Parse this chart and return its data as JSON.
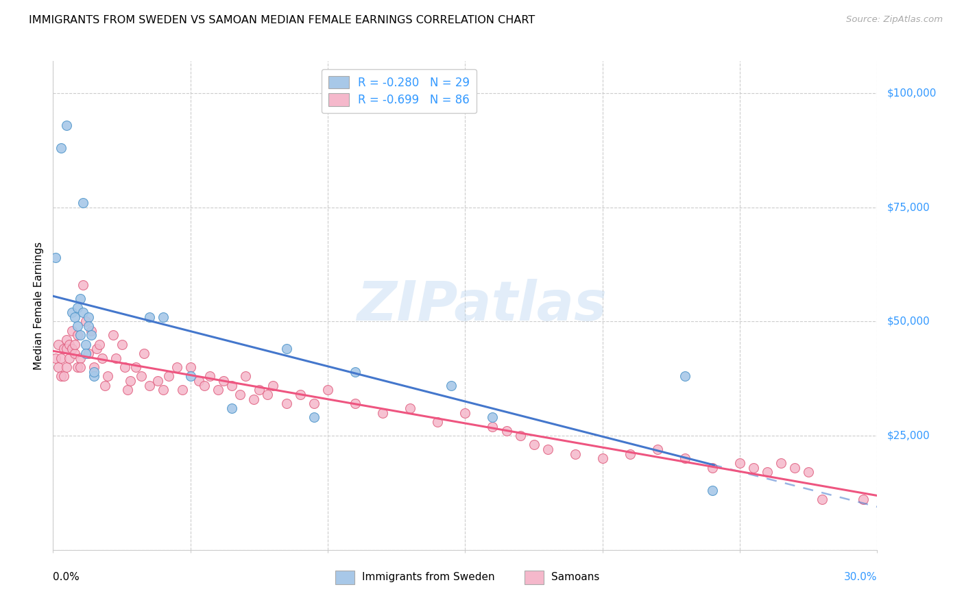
{
  "title": "IMMIGRANTS FROM SWEDEN VS SAMOAN MEDIAN FEMALE EARNINGS CORRELATION CHART",
  "source": "Source: ZipAtlas.com",
  "ylabel": "Median Female Earnings",
  "xlim": [
    0,
    0.3
  ],
  "ylim": [
    0,
    107000
  ],
  "color_blue_fill": "#a8c8e8",
  "color_pink_fill": "#f5b8cb",
  "color_blue_edge": "#5599cc",
  "color_pink_edge": "#e06080",
  "color_blue_line": "#4477cc",
  "color_pink_line": "#ee5580",
  "legend_label1": "Immigrants from Sweden",
  "legend_label2": "Samoans",
  "watermark_text": "ZIPatlas",
  "R1": "-0.280",
  "N1": "29",
  "R2": "-0.699",
  "N2": "86",
  "blue_x": [
    0.001,
    0.003,
    0.005,
    0.007,
    0.008,
    0.009,
    0.009,
    0.01,
    0.01,
    0.011,
    0.011,
    0.012,
    0.012,
    0.013,
    0.013,
    0.014,
    0.015,
    0.015,
    0.035,
    0.04,
    0.05,
    0.065,
    0.085,
    0.11,
    0.145,
    0.16,
    0.23,
    0.24,
    0.095
  ],
  "blue_y": [
    64000,
    88000,
    93000,
    52000,
    51000,
    49000,
    53000,
    55000,
    47000,
    52000,
    76000,
    45000,
    43000,
    51000,
    49000,
    47000,
    38000,
    39000,
    51000,
    51000,
    38000,
    31000,
    44000,
    39000,
    36000,
    29000,
    38000,
    13000,
    29000
  ],
  "pink_x": [
    0.001,
    0.002,
    0.002,
    0.003,
    0.003,
    0.004,
    0.004,
    0.005,
    0.005,
    0.005,
    0.006,
    0.006,
    0.007,
    0.007,
    0.008,
    0.008,
    0.009,
    0.009,
    0.01,
    0.01,
    0.011,
    0.012,
    0.013,
    0.014,
    0.015,
    0.016,
    0.017,
    0.018,
    0.019,
    0.02,
    0.022,
    0.023,
    0.025,
    0.026,
    0.027,
    0.028,
    0.03,
    0.032,
    0.033,
    0.035,
    0.038,
    0.04,
    0.042,
    0.045,
    0.047,
    0.05,
    0.053,
    0.055,
    0.057,
    0.06,
    0.062,
    0.065,
    0.068,
    0.07,
    0.073,
    0.075,
    0.078,
    0.08,
    0.085,
    0.09,
    0.095,
    0.1,
    0.11,
    0.12,
    0.13,
    0.14,
    0.15,
    0.16,
    0.165,
    0.17,
    0.175,
    0.18,
    0.19,
    0.2,
    0.21,
    0.22,
    0.23,
    0.24,
    0.25,
    0.255,
    0.26,
    0.265,
    0.27,
    0.275,
    0.28,
    0.295
  ],
  "pink_y": [
    42000,
    45000,
    40000,
    42000,
    38000,
    44000,
    38000,
    46000,
    44000,
    40000,
    45000,
    42000,
    48000,
    44000,
    43000,
    45000,
    47000,
    40000,
    42000,
    40000,
    58000,
    50000,
    43000,
    48000,
    40000,
    44000,
    45000,
    42000,
    36000,
    38000,
    47000,
    42000,
    45000,
    40000,
    35000,
    37000,
    40000,
    38000,
    43000,
    36000,
    37000,
    35000,
    38000,
    40000,
    35000,
    40000,
    37000,
    36000,
    38000,
    35000,
    37000,
    36000,
    34000,
    38000,
    33000,
    35000,
    34000,
    36000,
    32000,
    34000,
    32000,
    35000,
    32000,
    30000,
    31000,
    28000,
    30000,
    27000,
    26000,
    25000,
    23000,
    22000,
    21000,
    20000,
    21000,
    22000,
    20000,
    18000,
    19000,
    18000,
    17000,
    19000,
    18000,
    17000,
    11000,
    11000
  ],
  "ytick_vals": [
    0,
    25000,
    50000,
    75000,
    100000
  ],
  "ytick_right_labels": [
    "",
    "$25,000",
    "$50,000",
    "$75,000",
    "$100,000"
  ],
  "xtick_vals": [
    0,
    0.05,
    0.1,
    0.15,
    0.2,
    0.25,
    0.3
  ],
  "grid_color": "#cccccc",
  "title_fontsize": 11.5,
  "label_fontsize": 11,
  "source_color": "#aaaaaa"
}
